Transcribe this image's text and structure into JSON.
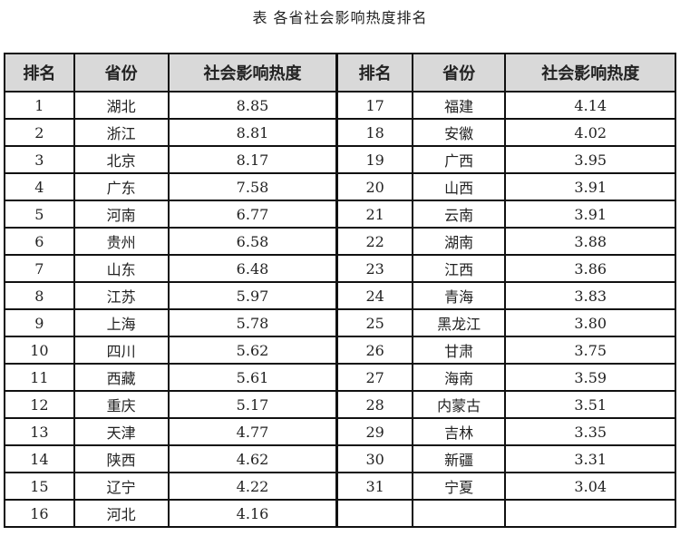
{
  "title": "表  各省社会影响热度排名",
  "headers": [
    "排名",
    "省份",
    "社会影响热度"
  ],
  "rows": [
    {
      "rank": "1",
      "province": "湖北",
      "value": "8.85"
    },
    {
      "rank": "2",
      "province": "浙江",
      "value": "8.81"
    },
    {
      "rank": "3",
      "province": "北京",
      "value": "8.17"
    },
    {
      "rank": "4",
      "province": "广东",
      "value": "7.58"
    },
    {
      "rank": "5",
      "province": "河南",
      "value": "6.77"
    },
    {
      "rank": "6",
      "province": "贵州",
      "value": "6.58"
    },
    {
      "rank": "7",
      "province": "山东",
      "value": "6.48"
    },
    {
      "rank": "8",
      "province": "江苏",
      "value": "5.97"
    },
    {
      "rank": "9",
      "province": "上海",
      "value": "5.78"
    },
    {
      "rank": "10",
      "province": "四川",
      "value": "5.62"
    },
    {
      "rank": "11",
      "province": "西藏",
      "value": "5.61"
    },
    {
      "rank": "12",
      "province": "重庆",
      "value": "5.17"
    },
    {
      "rank": "13",
      "province": "天津",
      "value": "4.77"
    },
    {
      "rank": "14",
      "province": "陕西",
      "value": "4.62"
    },
    {
      "rank": "15",
      "province": "辽宁",
      "value": "4.22"
    },
    {
      "rank": "16",
      "province": "河北",
      "value": "4.16"
    },
    {
      "rank": "17",
      "province": "福建",
      "value": "4.14"
    },
    {
      "rank": "18",
      "province": "安徽",
      "value": "4.02"
    },
    {
      "rank": "19",
      "province": "广西",
      "value": "3.95"
    },
    {
      "rank": "20",
      "province": "山西",
      "value": "3.91"
    },
    {
      "rank": "21",
      "province": "云南",
      "value": "3.91"
    },
    {
      "rank": "22",
      "province": "湖南",
      "value": "3.88"
    },
    {
      "rank": "23",
      "province": "江西",
      "value": "3.86"
    },
    {
      "rank": "24",
      "province": "青海",
      "value": "3.83"
    },
    {
      "rank": "25",
      "province": "黑龙江",
      "value": "3.80"
    },
    {
      "rank": "26",
      "province": "甘肃",
      "value": "3.75"
    },
    {
      "rank": "27",
      "province": "海南",
      "value": "3.59"
    },
    {
      "rank": "28",
      "province": "内蒙古",
      "value": "3.51"
    },
    {
      "rank": "29",
      "province": "吉林",
      "value": "3.35"
    },
    {
      "rank": "30",
      "province": "新疆",
      "value": "3.31"
    },
    {
      "rank": "31",
      "province": "宁夏",
      "value": "3.04"
    }
  ],
  "colors": {
    "header_bg": "#d9d9d9",
    "border": "#111111"
  }
}
